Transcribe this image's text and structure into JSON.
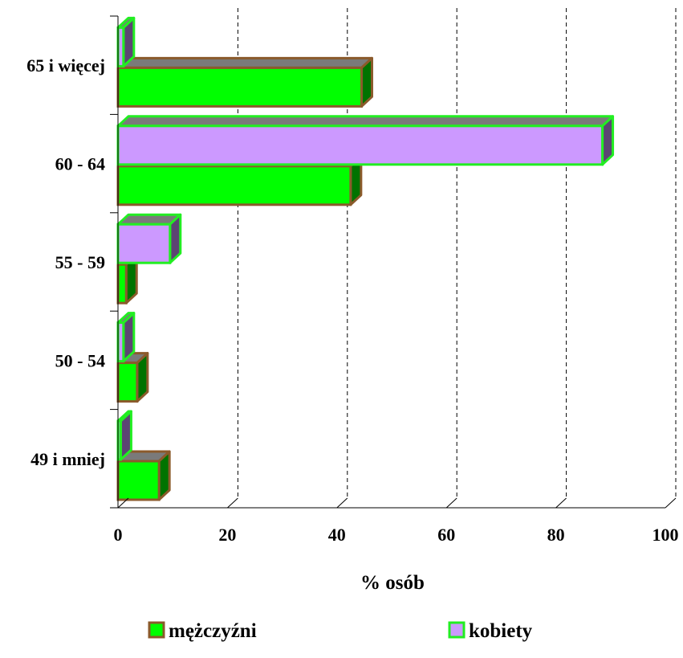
{
  "chart_data": {
    "type": "bar",
    "orientation": "horizontal",
    "categories": [
      "49 i mniej",
      "50 - 54",
      "55 - 59",
      "60 - 64",
      "65 i więcej"
    ],
    "series": [
      {
        "name": "mężczyźni",
        "values": [
          7.5,
          3.5,
          1.5,
          42.5,
          44.5
        ],
        "color": "#00ff00",
        "border": "#8b5a2b"
      },
      {
        "name": "kobiety",
        "values": [
          0.5,
          1.0,
          9.5,
          88.5,
          1.0
        ],
        "color": "#cc99ff",
        "border": "#22ee22"
      }
    ],
    "xlabel": "% osób",
    "ylabel": "",
    "xlim": [
      0,
      100
    ],
    "xticks": [
      "0",
      "20",
      "40",
      "60",
      "80",
      "100"
    ],
    "grid": "vertical dashed",
    "legend_position": "bottom"
  }
}
